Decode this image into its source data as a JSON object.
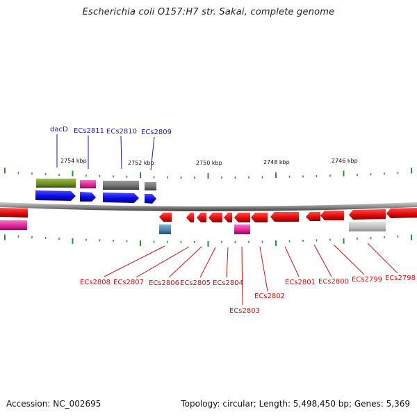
{
  "title": "Escherichia coli O157:H7 str. Sakai, complete genome",
  "footer": {
    "accession": "Accession: NC_002695",
    "summary": "Topology: circular; Length: 5,498,450 bp; Genes: 5,369"
  },
  "scale": {
    "tick_labels": [
      "2754 kbp",
      "2752 kbp",
      "2750 kbp",
      "2748 kbp",
      "2746 kbp"
    ]
  },
  "genes_top": [
    {
      "label": "dacD",
      "color": "#1a1aa0"
    },
    {
      "label": "ECs2811",
      "color": "#1a1aa0"
    },
    {
      "label": "ECs2810",
      "color": "#1a1aa0"
    },
    {
      "label": "ECs2809",
      "color": "#1a1aa0"
    }
  ],
  "genes_bottom": [
    {
      "label": "ECs2808",
      "color": "#cc1111"
    },
    {
      "label": "ECs2807",
      "color": "#cc1111"
    },
    {
      "label": "ECs2806",
      "color": "#cc1111"
    },
    {
      "label": "ECs2805",
      "color": "#cc1111"
    },
    {
      "label": "ECs2804",
      "color": "#cc1111"
    },
    {
      "label": "ECs2803",
      "color": "#cc1111"
    },
    {
      "label": "ECs2802",
      "color": "#cc1111"
    },
    {
      "label": "ECs2801",
      "color": "#cc1111"
    },
    {
      "label": "ECs2800",
      "color": "#cc1111"
    },
    {
      "label": "ECs2799",
      "color": "#cc1111"
    },
    {
      "label": "ECs2798",
      "color": "#cc1111"
    }
  ],
  "colors": {
    "forward_cds": "#0a0ae6",
    "reverse_cds": "#e60b0b",
    "gene_olive": "#6b8e23",
    "gene_magenta": "#e0209a",
    "gene_gray": "#6e6e6e",
    "gene_lightgray": "#b8b8b8",
    "gene_steel": "#4682b4",
    "backbone": "#8c8c8c",
    "tick": "#2f8f2f"
  }
}
